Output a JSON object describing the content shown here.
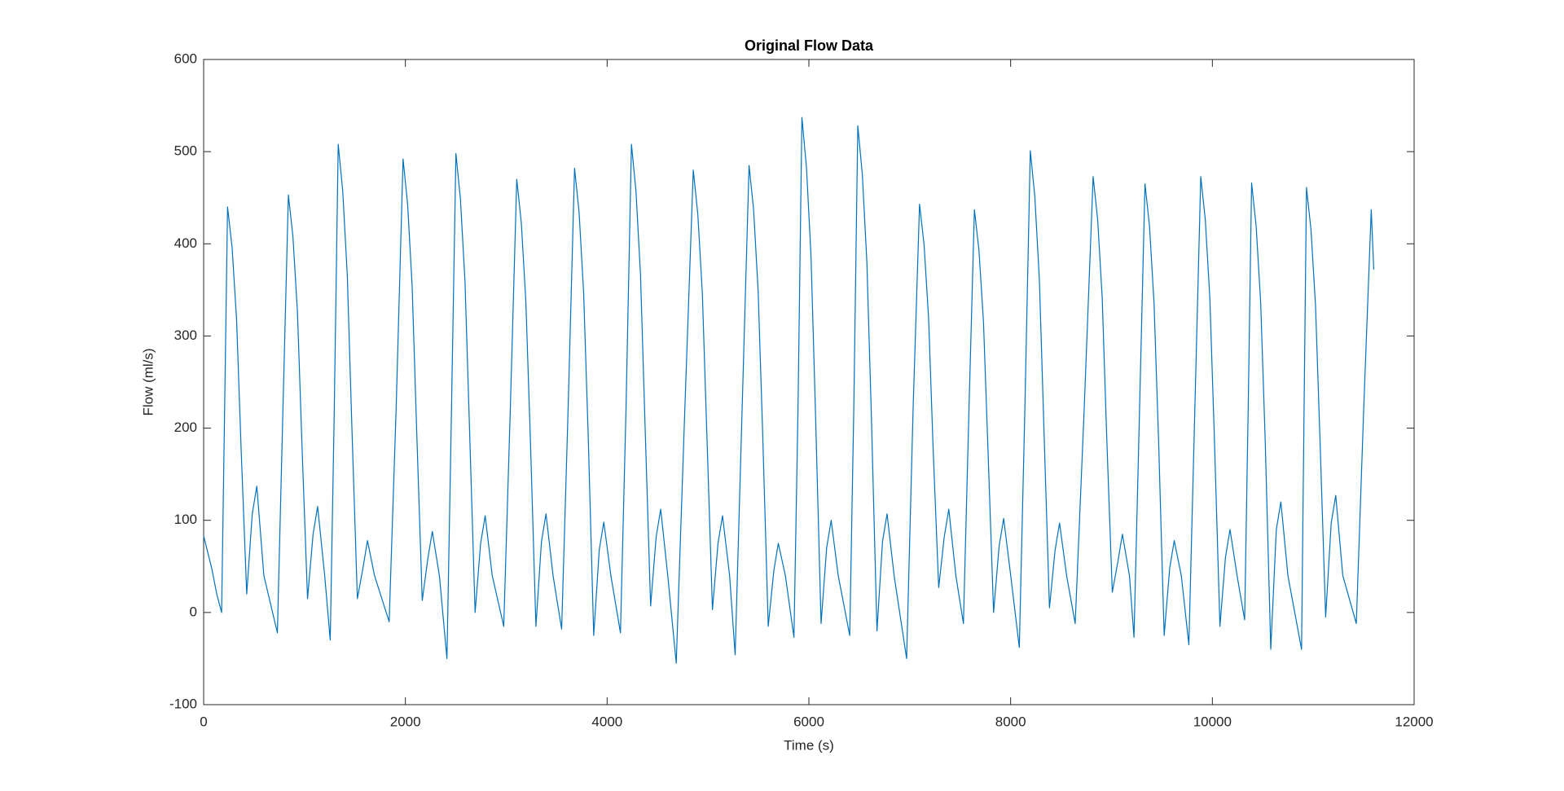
{
  "chart_data": {
    "type": "line",
    "title": "Original Flow Data",
    "xlabel": "Time (s)",
    "ylabel": "Flow (ml/s)",
    "xlim": [
      0,
      12000
    ],
    "xticks": [
      0,
      2000,
      4000,
      6000,
      8000,
      10000,
      12000
    ],
    "ylim": [
      -100,
      600
    ],
    "yticks": [
      -100,
      0,
      100,
      200,
      300,
      400,
      500,
      600
    ],
    "grid": false,
    "x": [
      0,
      80,
      130,
      178,
      208,
      237,
      282,
      327,
      372,
      427,
      482,
      527,
      597,
      731,
      786,
      840,
      885,
      930,
      975,
      1030,
      1085,
      1130,
      1200,
      1255,
      1295,
      1334,
      1379,
      1424,
      1469,
      1524,
      1579,
      1624,
      1694,
      1839,
      1908,
      1977,
      2022,
      2067,
      2112,
      2167,
      2222,
      2267,
      2337,
      2412,
      2457,
      2501,
      2546,
      2591,
      2636,
      2691,
      2746,
      2791,
      2861,
      2975,
      3040,
      3104,
      3149,
      3194,
      3239,
      3294,
      3349,
      3394,
      3464,
      3549,
      3613,
      3677,
      3722,
      3767,
      3812,
      3867,
      3922,
      3967,
      4037,
      4132,
      4187,
      4241,
      4286,
      4331,
      4376,
      4431,
      4486,
      4531,
      4601,
      4685,
      4770,
      4854,
      4899,
      4944,
      4989,
      5044,
      5099,
      5144,
      5214,
      5269,
      5338,
      5407,
      5452,
      5497,
      5542,
      5597,
      5652,
      5697,
      5767,
      5852,
      5892,
      5931,
      5976,
      6021,
      6066,
      6121,
      6176,
      6221,
      6291,
      6405,
      6445,
      6485,
      6530,
      6575,
      6620,
      6675,
      6730,
      6775,
      6845,
      6969,
      7033,
      7097,
      7142,
      7187,
      7232,
      7287,
      7342,
      7387,
      7457,
      7532,
      7587,
      7641,
      7686,
      7731,
      7776,
      7831,
      7886,
      7931,
      8001,
      8086,
      8141,
      8195,
      8240,
      8285,
      8330,
      8385,
      8440,
      8485,
      8555,
      8640,
      8729,
      8818,
      8863,
      8908,
      8953,
      9008,
      9063,
      9108,
      9178,
      9223,
      9278,
      9332,
      9377,
      9422,
      9467,
      9522,
      9577,
      9622,
      9692,
      9767,
      9826,
      9885,
      9930,
      9975,
      10020,
      10075,
      10130,
      10175,
      10245,
      10320,
      10355,
      10389,
      10434,
      10479,
      10524,
      10579,
      10634,
      10679,
      10749,
      10884,
      10909,
      10933,
      10978,
      11023,
      11068,
      11123,
      11178,
      11223,
      11293,
      11427,
      11500,
      11575,
      11600
    ],
    "series": [
      {
        "name": "Flow",
        "color": "#0072bd",
        "values": [
          83,
          48,
          20,
          0,
          220,
          440,
          396,
          317,
          176,
          20,
          107,
          137,
          40,
          -22,
          220,
          453,
          408,
          326,
          181,
          15,
          85,
          115,
          40,
          -30,
          220,
          508,
          457,
          366,
          203,
          15,
          48,
          78,
          40,
          -10,
          220,
          492,
          443,
          354,
          197,
          13,
          58,
          88,
          40,
          -50,
          220,
          498,
          448,
          359,
          199,
          0,
          75,
          105,
          40,
          -15,
          220,
          470,
          423,
          338,
          188,
          -15,
          77,
          107,
          40,
          -18,
          220,
          482,
          434,
          347,
          193,
          -25,
          68,
          98,
          40,
          -22,
          220,
          508,
          457,
          366,
          203,
          7,
          82,
          112,
          40,
          -55,
          220,
          480,
          432,
          346,
          192,
          3,
          75,
          105,
          40,
          -46,
          220,
          485,
          437,
          349,
          194,
          -15,
          45,
          75,
          40,
          -27,
          220,
          537,
          483,
          387,
          215,
          -12,
          70,
          100,
          40,
          -25,
          220,
          528,
          475,
          380,
          211,
          -20,
          77,
          107,
          40,
          -50,
          220,
          443,
          399,
          319,
          177,
          27,
          82,
          112,
          40,
          -12,
          220,
          437,
          393,
          315,
          175,
          0,
          72,
          102,
          40,
          -38,
          220,
          501,
          451,
          361,
          200,
          5,
          67,
          97,
          40,
          -12,
          220,
          473,
          426,
          341,
          189,
          22,
          55,
          85,
          40,
          -27,
          220,
          465,
          419,
          335,
          186,
          -25,
          48,
          78,
          40,
          -35,
          220,
          473,
          426,
          341,
          189,
          -15,
          60,
          90,
          40,
          -8,
          220,
          466,
          419,
          336,
          186,
          -40,
          90,
          120,
          40,
          -40,
          220,
          461,
          415,
          332,
          184,
          -5,
          97,
          127,
          40,
          -12,
          220,
          437,
          372
        ]
      }
    ]
  }
}
